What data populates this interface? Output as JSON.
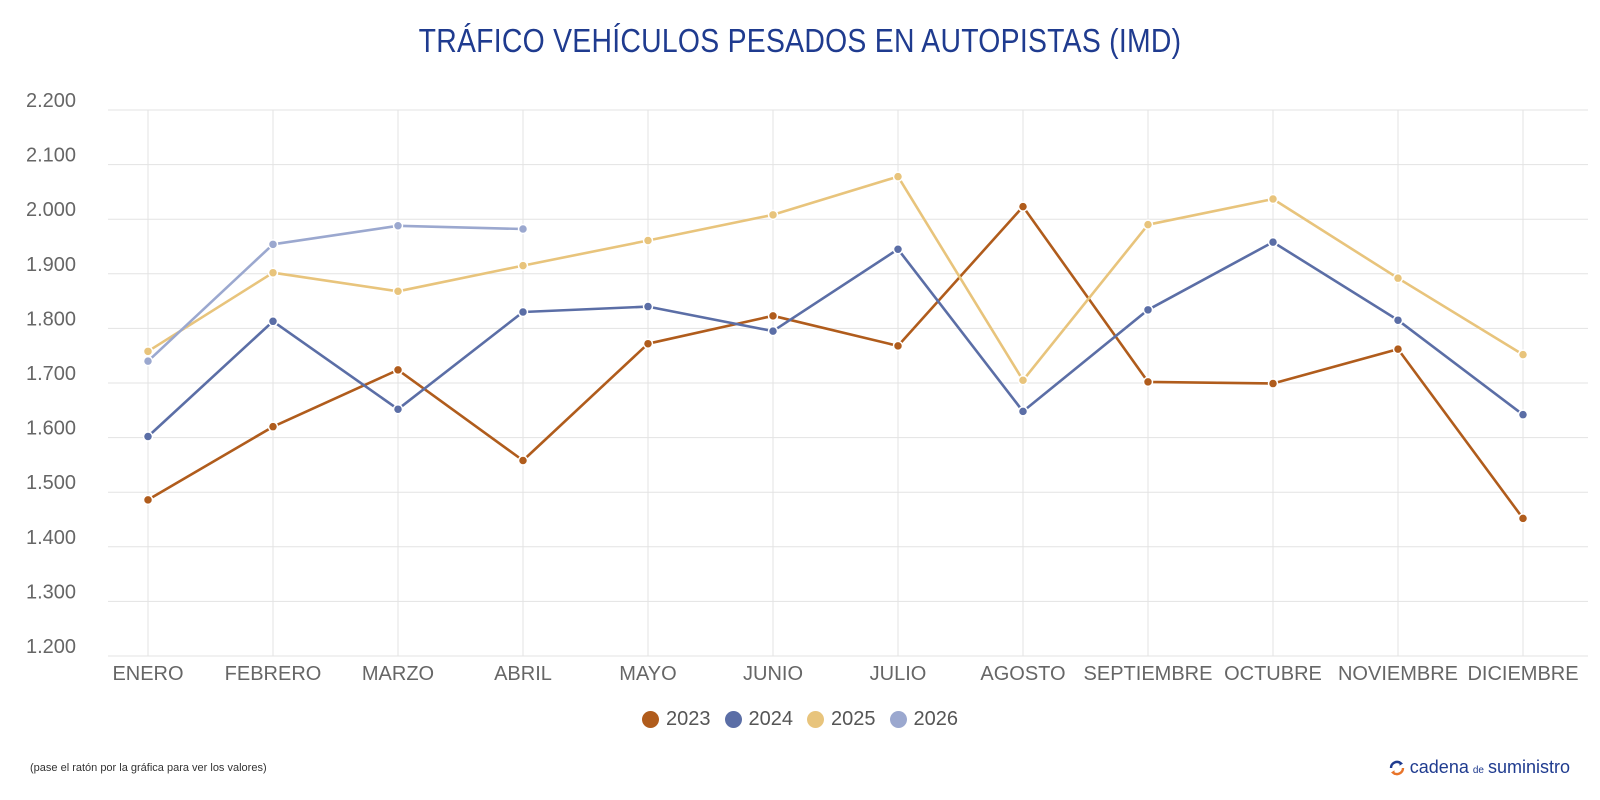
{
  "title": "TRÁFICO VEHÍCULOS PESADOS EN AUTOPISTAS (IMD)",
  "note": "(pase el ratón por la gráfica para ver los valores)",
  "brand": {
    "part1": "cadena",
    "part2": "de",
    "part3": "suministro",
    "logo_icon": "refresh-arrows-icon"
  },
  "chart_data": {
    "type": "line",
    "categories": [
      "ENERO",
      "FEBRERO",
      "MARZO",
      "ABRIL",
      "MAYO",
      "JUNIO",
      "JULIO",
      "AGOSTO",
      "SEPTIEMBRE",
      "OCTUBRE",
      "NOVIEMBRE",
      "DICIEMBRE"
    ],
    "ylim": [
      1200,
      2200
    ],
    "yticks": [
      2200,
      2100,
      2000,
      1900,
      1800,
      1700,
      1600,
      1500,
      1400,
      1300,
      1200
    ],
    "ytick_labels": [
      "2.200",
      "2.100",
      "2.000",
      "1.900",
      "1.800",
      "1.700",
      "1.600",
      "1.500",
      "1.400",
      "1.300",
      "1.200"
    ],
    "grid": true,
    "legend_position": "bottom-center",
    "series": [
      {
        "name": "2023",
        "color": "#b05c1c",
        "values": [
          1486,
          1620,
          1724,
          1558,
          1772,
          1823,
          1768,
          2023,
          1702,
          1699,
          1762,
          1452
        ]
      },
      {
        "name": "2024",
        "color": "#5b6ea6",
        "values": [
          1602,
          1813,
          1652,
          1830,
          1840,
          1795,
          1945,
          1648,
          1834,
          1958,
          1815,
          1642
        ]
      },
      {
        "name": "2025",
        "color": "#e8c47c",
        "values": [
          1758,
          1902,
          1868,
          1915,
          1961,
          2008,
          2078,
          1705,
          1990,
          2037,
          1892,
          1752
        ]
      },
      {
        "name": "2026",
        "color": "#9ba8cf",
        "values": [
          1740,
          1954,
          1988,
          1982,
          null,
          null,
          null,
          null,
          null,
          null,
          null,
          null
        ]
      }
    ]
  }
}
